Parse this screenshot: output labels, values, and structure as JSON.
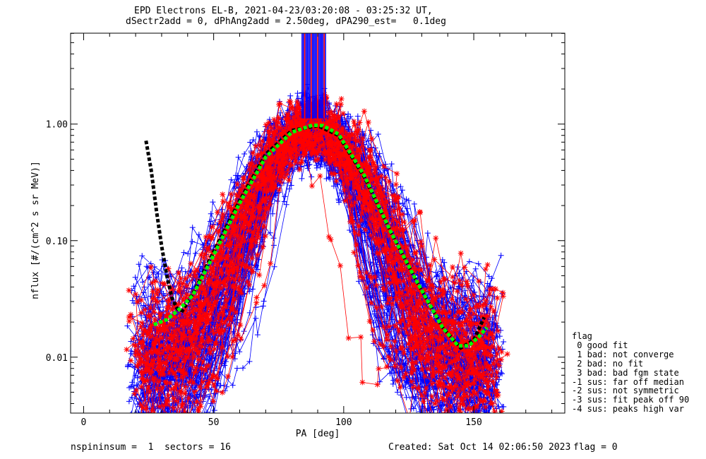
{
  "header": {
    "title_line1": "EPD Electrons EL-B, 2021-04-23/03:20:08 - 03:25:32 UT,",
    "title_line2": "dSectr2add = 0, dPhAng2add = 2.50deg, dPA290_est=   0.1deg"
  },
  "footer": {
    "left": "nspininsum =  1  sectors = 16",
    "created": "Created: Sat Oct 14 02:06:50 2023",
    "flag": "flag = 0"
  },
  "legend": {
    "title": "flag",
    "items": [
      " 0 good fit",
      " 1 bad: not converge",
      " 2 bad: no fit",
      " 3 bad: bad fgm state",
      "-1 sus: far off median",
      "-2 sus: not symmetric",
      "-3 sus: fit peak off 90",
      "-4 sus: peaks high var"
    ]
  },
  "colors": {
    "blue": "#0000ff",
    "red": "#ff0000",
    "green": "#00ff00",
    "black": "#000000"
  },
  "chart_data": {
    "type": "line",
    "xlabel": "PA [deg]",
    "ylabel": "nflux [#/(cm^2 s sr MeV)]",
    "xlim": [
      -5,
      185
    ],
    "ylim_log10": [
      -2.48,
      0.78
    ],
    "y_scale": "log",
    "x_ticks": [
      0,
      50,
      100,
      150
    ],
    "x_tick_labels": [
      "0",
      "50",
      "100",
      "150"
    ],
    "y_ticks": [
      0.01,
      0.1,
      1.0
    ],
    "y_tick_labels": [
      "0.01",
      "0.10",
      "1.00"
    ],
    "median_profile": {
      "color": "black",
      "style": "dashed",
      "x": [
        24,
        26,
        28,
        30,
        32,
        34,
        36,
        38,
        42,
        50,
        60,
        70,
        80,
        90,
        98,
        108,
        118,
        128,
        138,
        145,
        150,
        154
      ],
      "y": [
        0.72,
        0.4,
        0.18,
        0.09,
        0.05,
        0.032,
        0.026,
        0.025,
        0.035,
        0.08,
        0.22,
        0.55,
        0.88,
        0.97,
        0.8,
        0.35,
        0.12,
        0.045,
        0.018,
        0.012,
        0.014,
        0.022
      ]
    },
    "fit_profile": {
      "color": "green",
      "style": "dashed",
      "x": [
        27,
        32,
        37,
        42,
        50,
        60,
        70,
        80,
        88,
        92,
        98,
        108,
        118,
        128,
        138,
        144,
        148,
        152,
        155
      ],
      "y": [
        0.019,
        0.021,
        0.026,
        0.034,
        0.075,
        0.21,
        0.52,
        0.85,
        0.98,
        0.97,
        0.82,
        0.36,
        0.12,
        0.045,
        0.018,
        0.0125,
        0.0125,
        0.015,
        0.018
      ]
    },
    "series": [
      {
        "color": "blue",
        "marker": "plus",
        "count": 110
      },
      {
        "color": "red",
        "marker": "asterisk",
        "count": 45
      }
    ],
    "peak_spikes": {
      "x_range": [
        84,
        93
      ],
      "y_bottom": 1.12
    }
  }
}
